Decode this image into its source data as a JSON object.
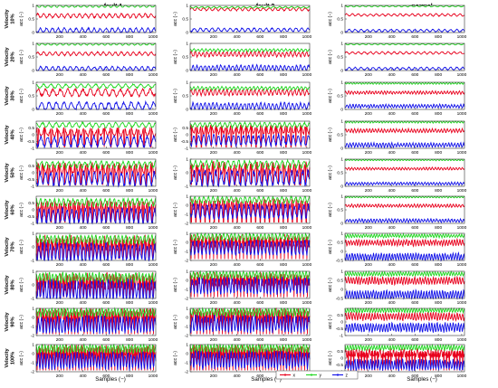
{
  "chart_data": {
    "type": "line",
    "columns": [
      "fault 1",
      "fault 2",
      "normal"
    ],
    "rows": [
      "Velocity 10%",
      "Velocity 20%",
      "Velocity 30%",
      "Velocity 40%",
      "Velocity 50%",
      "Velocity 60%",
      "Velocity 70%",
      "Velocity 80%",
      "Velocity 90%",
      "Velocity 100%"
    ],
    "ylabel": "acc (−)",
    "xlabel": "Samples (−)",
    "xlim": [
      0,
      1024
    ],
    "xticks": [
      200,
      400,
      600,
      800,
      1000
    ],
    "series_names": [
      "x",
      "y",
      "z"
    ],
    "series_colors": [
      "#e8001c",
      "#1ed71e",
      "#1010e8"
    ],
    "legend_placement": "bottom-center",
    "panel_fields": [
      "ymin",
      "ymax",
      "yticks",
      "x_level",
      "y_level",
      "z_level",
      "amplitude",
      "cycles"
    ],
    "panels": [
      [
        [
          0,
          1,
          [
            0,
            0.5,
            1
          ],
          0.62,
          0.97,
          0.08,
          0.07,
          20
        ],
        [
          0,
          1,
          [
            0,
            0.5,
            1
          ],
          0.86,
          0.93,
          0.1,
          0.05,
          20
        ],
        [
          0,
          1,
          [
            0,
            0.5,
            1
          ],
          0.65,
          0.97,
          0.07,
          0.04,
          20
        ]
      ],
      [
        [
          0,
          1,
          [
            0,
            0.5,
            1
          ],
          0.62,
          0.97,
          0.07,
          0.06,
          20
        ],
        [
          0,
          1,
          [
            0,
            0.5,
            1
          ],
          0.6,
          0.75,
          0.1,
          0.08,
          30
        ],
        [
          0,
          1,
          [
            0,
            0.5,
            1
          ],
          0.65,
          0.97,
          0.07,
          0.04,
          20
        ]
      ],
      [
        [
          0,
          1,
          [
            0,
            0.5,
            1
          ],
          0.62,
          0.86,
          0.12,
          0.12,
          16
        ],
        [
          0,
          1,
          [
            0,
            0.5,
            1
          ],
          0.63,
          0.78,
          0.12,
          0.1,
          30
        ],
        [
          0,
          1,
          [
            0,
            0.5,
            1
          ],
          0.62,
          0.96,
          0.12,
          0.05,
          40
        ]
      ],
      [
        [
          -1,
          1,
          [
            -1,
            -0.5,
            0,
            0.5
          ],
          0.2,
          0.72,
          -0.5,
          0.3,
          18
        ],
        [
          -1,
          1,
          [
            -1,
            -0.5,
            0,
            0.5
          ],
          0.4,
          0.72,
          -0.4,
          0.3,
          24
        ],
        [
          0,
          1,
          [
            0,
            0.5,
            1
          ],
          0.65,
          0.97,
          0.12,
          0.06,
          40
        ]
      ],
      [
        [
          -1,
          1,
          [
            -1,
            -0.5,
            0,
            0.5
          ],
          0.3,
          0.6,
          -0.45,
          0.4,
          22
        ],
        [
          -1,
          1,
          [
            -1,
            0,
            1
          ],
          0.3,
          0.62,
          -0.4,
          0.45,
          22
        ],
        [
          0,
          1,
          [
            0,
            0.5,
            1
          ],
          0.65,
          0.97,
          0.1,
          0.04,
          40
        ]
      ],
      [
        [
          -1,
          1,
          [
            -1,
            -0.5,
            0,
            0.5
          ],
          0.3,
          0.55,
          -0.45,
          0.45,
          26
        ],
        [
          -2,
          1,
          [
            -2,
            -1,
            0,
            1
          ],
          0.2,
          0.6,
          -0.7,
          0.6,
          26
        ],
        [
          0,
          1,
          [
            0,
            0.5,
            1
          ],
          0.65,
          0.97,
          0.1,
          0.05,
          40
        ]
      ],
      [
        [
          -1,
          1,
          [
            -1,
            0,
            1
          ],
          0.3,
          0.55,
          -0.4,
          0.5,
          32
        ],
        [
          -2,
          1,
          [
            -2,
            -1,
            0,
            1
          ],
          0.2,
          0.6,
          -0.6,
          0.6,
          32
        ],
        [
          -0.5,
          1,
          [
            -0.5,
            0,
            0.5,
            1
          ],
          0.48,
          0.86,
          -0.3,
          0.15,
          45
        ]
      ],
      [
        [
          -1,
          1,
          [
            -1,
            0,
            1
          ],
          0.3,
          0.55,
          -0.4,
          0.55,
          36
        ],
        [
          -2,
          1,
          [
            -2,
            -1,
            0,
            1
          ],
          0.2,
          0.6,
          -0.6,
          0.65,
          36
        ],
        [
          -0.5,
          1,
          [
            -0.5,
            0,
            0.5,
            1
          ],
          0.48,
          0.86,
          -0.3,
          0.18,
          45
        ]
      ],
      [
        [
          -2,
          1,
          [
            -2,
            -1,
            0,
            1
          ],
          0.3,
          0.55,
          -0.8,
          0.7,
          38
        ],
        [
          -2,
          1,
          [
            -2,
            -1,
            0,
            1
          ],
          0.3,
          0.6,
          -0.7,
          0.7,
          38
        ],
        [
          -1,
          1,
          [
            -1,
            -0.5,
            0,
            0.5
          ],
          0.4,
          0.86,
          -0.4,
          0.25,
          45
        ]
      ],
      [
        [
          -2,
          1,
          [
            -2,
            -1,
            0,
            1
          ],
          0.3,
          0.55,
          -0.8,
          0.7,
          40
        ],
        [
          -2,
          1,
          [
            -2,
            -1,
            0,
            1
          ],
          0.3,
          0.6,
          -0.7,
          0.7,
          40
        ],
        [
          -1,
          1,
          [
            -1,
            -0.5,
            0,
            0.5
          ],
          0.4,
          0.78,
          -0.5,
          0.3,
          45
        ]
      ]
    ]
  }
}
